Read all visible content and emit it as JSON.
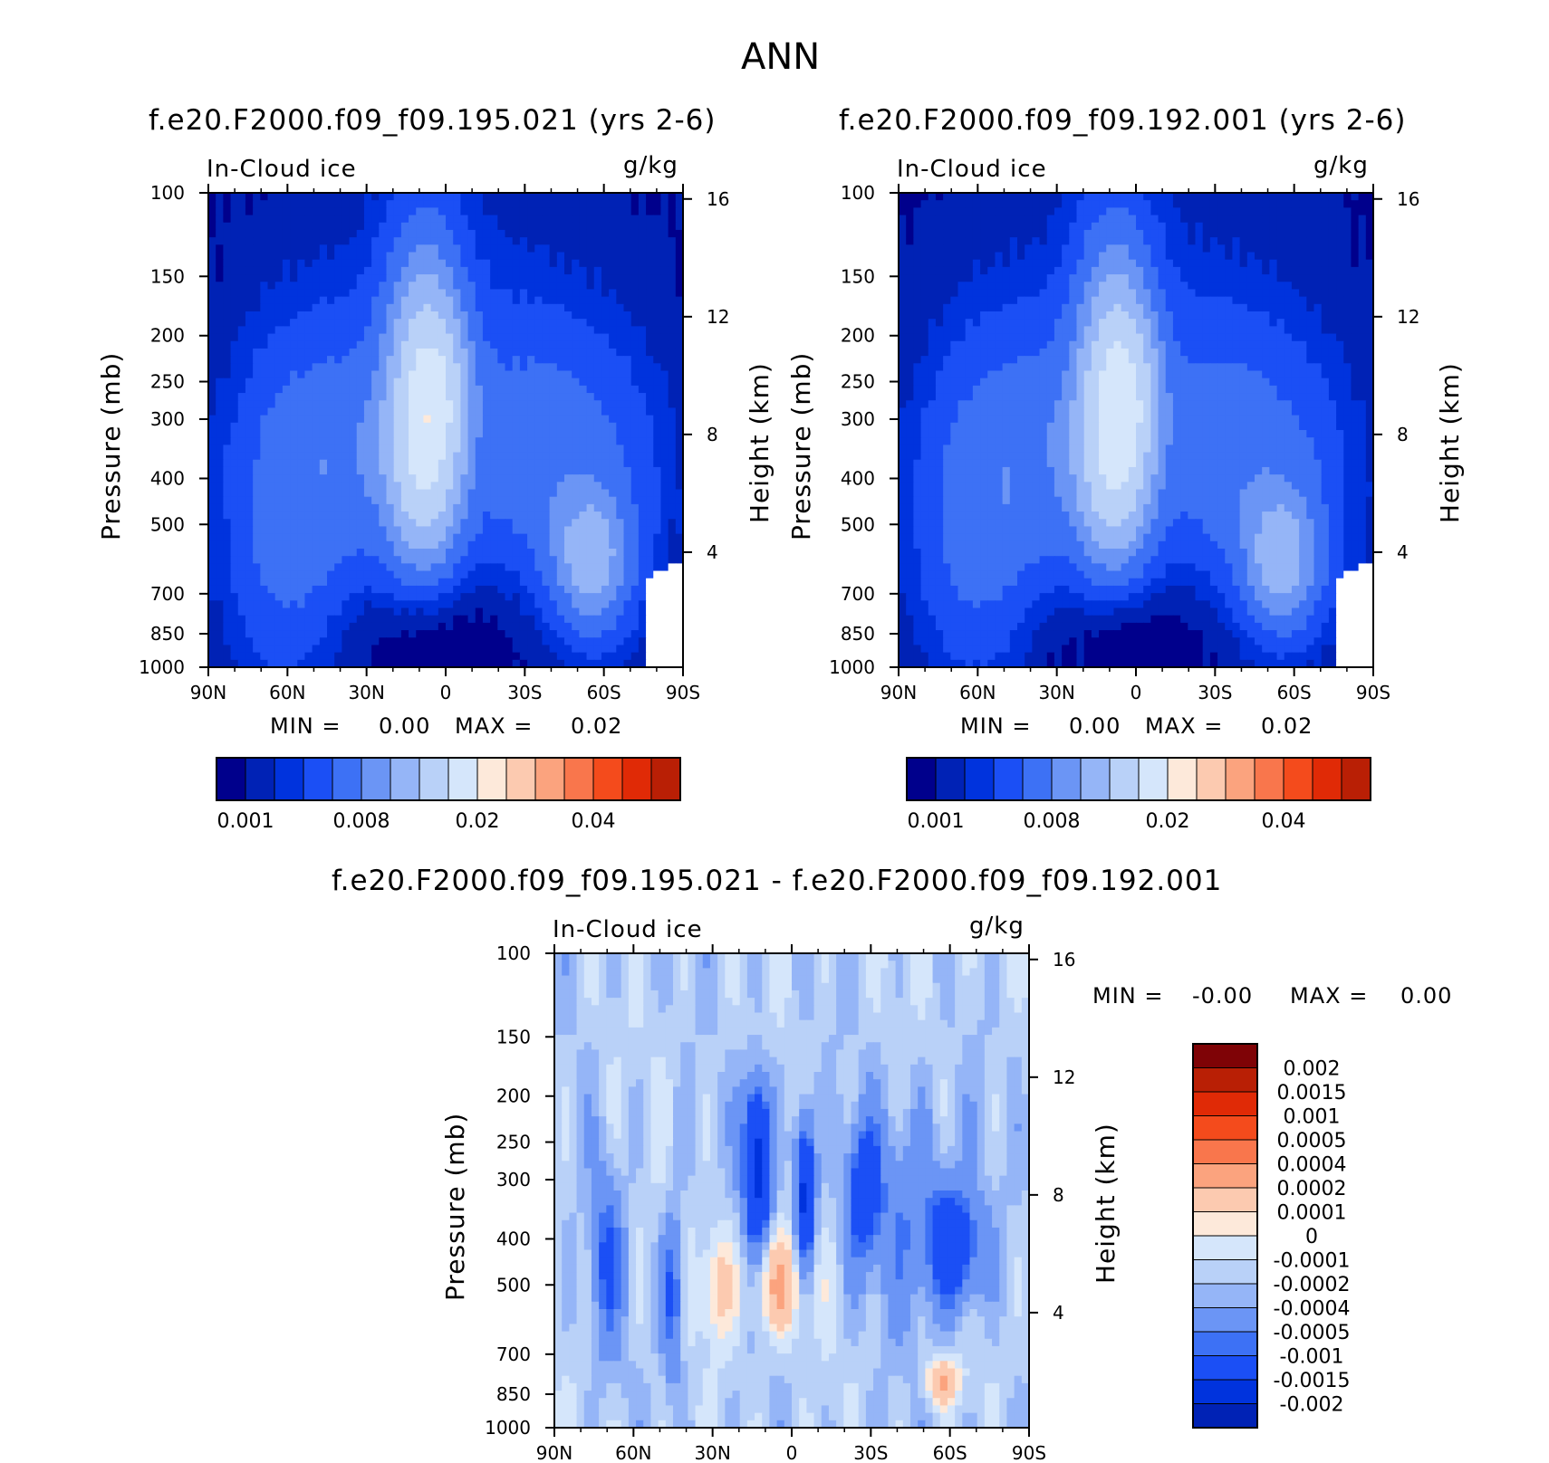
{
  "figure": {
    "title": "ANN"
  },
  "colors": {
    "scale": [
      "#00008c",
      "#0022b5",
      "#0033dd",
      "#1b4ff5",
      "#3d71f5",
      "#6b95f5",
      "#95b5f7",
      "#b9d1f8",
      "#d5e6fb",
      "#fde9da",
      "#fccab0",
      "#fba37e",
      "#f9764c",
      "#f44b1c",
      "#e02a06",
      "#b91f05",
      "#7f0306"
    ]
  },
  "panels": [
    {
      "title": "f.e20.F2000.f09_f09.195.021 (yrs 2-6)",
      "variable": "In-Cloud ice",
      "units": "g/kg",
      "ylabel": "Pressure (mb)",
      "y2label": "Height (km)",
      "min_label": "MIN =",
      "min_value": "0.00",
      "max_label": "MAX =",
      "max_value": "0.02"
    },
    {
      "title": "f.e20.F2000.f09_f09.192.001 (yrs 2-6)",
      "variable": "In-Cloud ice",
      "units": "g/kg",
      "ylabel": "Pressure (mb)",
      "y2label": "Height (km)",
      "min_label": "MIN =",
      "min_value": "0.00",
      "max_label": "MAX =",
      "max_value": "0.02"
    },
    {
      "title": "f.e20.F2000.f09_f09.195.021 - f.e20.F2000.f09_f09.192.001",
      "variable": "In-Cloud ice",
      "units": "g/kg",
      "ylabel": "Pressure (mb)",
      "y2label": "Height (km)",
      "min_label": "MIN =",
      "min_value": "-0.00",
      "max_label": "MAX =",
      "max_value": "0.00"
    }
  ],
  "chart_data": [
    {
      "type": "heatmap",
      "title": "f.e20.F2000.f09_f09.195.021 (yrs 2-6)",
      "x_ticks": [
        "90N",
        "60N",
        "30N",
        "0",
        "30S",
        "60S",
        "90S"
      ],
      "x_values": [
        90,
        60,
        30,
        0,
        -30,
        -60,
        -90
      ],
      "y_ticks": [
        "100",
        "150",
        "200",
        "250",
        "300",
        "400",
        "500",
        "700",
        "850",
        "1000"
      ],
      "y_values": [
        100,
        150,
        200,
        250,
        300,
        400,
        500,
        700,
        850,
        1000
      ],
      "y_scale": "log",
      "y_reversed": true,
      "y2_ticks": [
        "16",
        "12",
        "8",
        "4"
      ],
      "y2_values": [
        16,
        12,
        8,
        4
      ],
      "colorbar_ticks": [
        "0.001",
        "0.008",
        "0.02",
        "0.04"
      ],
      "colorbar_levels": 16,
      "min": 0.0,
      "max": 0.02
    },
    {
      "type": "heatmap",
      "title": "f.e20.F2000.f09_f09.192.001 (yrs 2-6)",
      "x_ticks": [
        "90N",
        "60N",
        "30N",
        "0",
        "30S",
        "60S",
        "90S"
      ],
      "x_values": [
        90,
        60,
        30,
        0,
        -30,
        -60,
        -90
      ],
      "y_ticks": [
        "100",
        "150",
        "200",
        "250",
        "300",
        "400",
        "500",
        "700",
        "850",
        "1000"
      ],
      "y_values": [
        100,
        150,
        200,
        250,
        300,
        400,
        500,
        700,
        850,
        1000
      ],
      "y_scale": "log",
      "y_reversed": true,
      "y2_ticks": [
        "16",
        "12",
        "8",
        "4"
      ],
      "y2_values": [
        16,
        12,
        8,
        4
      ],
      "colorbar_ticks": [
        "0.001",
        "0.008",
        "0.02",
        "0.04"
      ],
      "colorbar_levels": 16,
      "min": 0.0,
      "max": 0.02
    },
    {
      "type": "heatmap",
      "title": "f.e20.F2000.f09_f09.195.021 - f.e20.F2000.f09_f09.192.001",
      "x_ticks": [
        "90N",
        "60N",
        "30N",
        "0",
        "30S",
        "60S",
        "90S"
      ],
      "x_values": [
        90,
        60,
        30,
        0,
        -30,
        -60,
        -90
      ],
      "y_ticks": [
        "100",
        "150",
        "200",
        "250",
        "300",
        "400",
        "500",
        "700",
        "850",
        "1000"
      ],
      "y_values": [
        100,
        150,
        200,
        250,
        300,
        400,
        500,
        700,
        850,
        1000
      ],
      "y_scale": "log",
      "y_reversed": true,
      "y2_ticks": [
        "16",
        "12",
        "8",
        "4"
      ],
      "y2_values": [
        16,
        12,
        8,
        4
      ],
      "colorbar_ticks": [
        "0.002",
        "0.0015",
        "0.001",
        "0.0005",
        "0.0004",
        "0.0002",
        "0.0001",
        "0",
        "-0.0001",
        "-0.0002",
        "-0.0004",
        "-0.0005",
        "-0.001",
        "-0.0015",
        "-0.002"
      ],
      "colorbar_levels": 16,
      "min": -0.0,
      "max": 0.0
    }
  ]
}
